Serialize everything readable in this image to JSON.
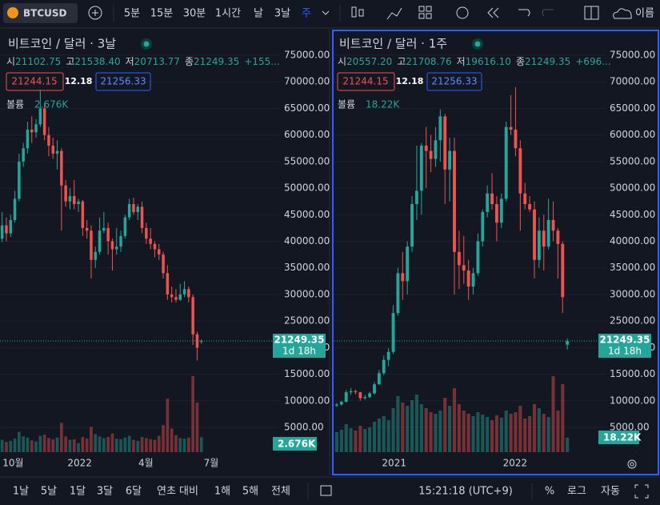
{
  "toolbar": {
    "symbol": "BTCUSD",
    "intervals": [
      "5분",
      "15분",
      "30분",
      "1시간",
      "날",
      "3날",
      "주"
    ],
    "layout_name": "이름"
  },
  "chart_data": [
    {
      "type": "candlestick",
      "title": "비트코인 / 달러 · 3날",
      "ohlc_header": [
        {
          "label": "시",
          "value": "21102.75"
        },
        {
          "label": "고",
          "value": "21538.40"
        },
        {
          "label": "저",
          "value": "20713.77"
        },
        {
          "label": "종",
          "value": "21249.35"
        }
      ],
      "change": "+155...",
      "bid": "21244.15",
      "spread": "12.18",
      "ask": "21256.33",
      "volume_title": "볼륨",
      "volume_label": "2.676K",
      "countdown": "1d 18h",
      "up_color": "#26a69a",
      "down_color": "#ef5350",
      "grid": true,
      "ohlc": [
        [
          40500,
          45500,
          39800,
          43000
        ],
        [
          43000,
          44500,
          40000,
          41500
        ],
        [
          41500,
          45000,
          40800,
          44000
        ],
        [
          44000,
          49500,
          43500,
          48000
        ],
        [
          48000,
          56500,
          47500,
          55000
        ],
        [
          55000,
          58500,
          54000,
          57500
        ],
        [
          57500,
          62500,
          56500,
          61000
        ],
        [
          61000,
          63500,
          58500,
          60500
        ],
        [
          60500,
          63000,
          59500,
          62000
        ],
        [
          62000,
          68500,
          61500,
          65000
        ],
        [
          65000,
          66000,
          59000,
          60000
        ],
        [
          60000,
          61500,
          56000,
          58000
        ],
        [
          58000,
          59500,
          55500,
          56500
        ],
        [
          56500,
          59000,
          53500,
          57000
        ],
        [
          57000,
          57500,
          42000,
          50500
        ],
        [
          50500,
          51500,
          46500,
          47500
        ],
        [
          47500,
          50000,
          46000,
          48500
        ],
        [
          48500,
          51500,
          46000,
          47000
        ],
        [
          47000,
          48000,
          45500,
          47500
        ],
        [
          47500,
          47800,
          41000,
          42500
        ],
        [
          42500,
          44000,
          40500,
          42000
        ],
        [
          42000,
          43000,
          33000,
          36500
        ],
        [
          36500,
          39000,
          35000,
          38000
        ],
        [
          38000,
          44500,
          37500,
          42000
        ],
        [
          42000,
          45500,
          41500,
          42500
        ],
        [
          42500,
          43500,
          37500,
          40000
        ],
        [
          40000,
          40500,
          34500,
          38500
        ],
        [
          38500,
          42500,
          37500,
          39000
        ],
        [
          39000,
          42000,
          38000,
          41000
        ],
        [
          41000,
          45000,
          40500,
          44500
        ],
        [
          44500,
          48000,
          44000,
          47000
        ],
        [
          47000,
          48200,
          45000,
          45500
        ],
        [
          45500,
          47000,
          44000,
          46500
        ],
        [
          46500,
          47500,
          41500,
          42500
        ],
        [
          42500,
          43500,
          39500,
          40500
        ],
        [
          40500,
          42500,
          38500,
          39500
        ],
        [
          39500,
          40000,
          37000,
          38500
        ],
        [
          38500,
          39500,
          36500,
          37500
        ],
        [
          37500,
          38000,
          33000,
          34000
        ],
        [
          34000,
          35500,
          29000,
          30000
        ],
        [
          30000,
          31500,
          28500,
          29500
        ],
        [
          29500,
          31000,
          28500,
          29000
        ],
        [
          29000,
          32000,
          28800,
          30000
        ],
        [
          30000,
          32500,
          29500,
          31000
        ],
        [
          31000,
          31500,
          28500,
          29500
        ],
        [
          29500,
          30000,
          20500,
          22500
        ],
        [
          22500,
          23000,
          17600,
          20000
        ],
        [
          21102.75,
          21538.4,
          20713.77,
          21249.35
        ]
      ],
      "volume": [
        2200,
        1800,
        2000,
        2400,
        3600,
        2800,
        2600,
        2100,
        1900,
        2900,
        3100,
        2500,
        2300,
        2600,
        5200,
        2800,
        2200,
        2300,
        1600,
        2700,
        2400,
        4500,
        3200,
        2800,
        2500,
        2700,
        3300,
        2400,
        2300,
        2600,
        2900,
        2200,
        2000,
        2700,
        2500,
        2300,
        2200,
        2900,
        4800,
        9500,
        4200,
        3000,
        2500,
        2400,
        2600,
        13500,
        8800,
        2676
      ],
      "xlim": [
        -0.5,
        49.5
      ],
      "xticks": [
        {
          "value": 2.6,
          "label": "10월"
        },
        {
          "value": 18.3,
          "label": "2022"
        },
        {
          "value": 33.9,
          "label": "4월"
        },
        {
          "value": 49.3,
          "label": "7월"
        }
      ],
      "ylim": [
        5000,
        75000
      ],
      "yticks": [
        {
          "value": 5000,
          "label": "5000.00"
        },
        {
          "value": 10000,
          "label": "10000.00"
        },
        {
          "value": 15000,
          "label": "15000.00"
        },
        {
          "value": 20000,
          "label": "20000.00"
        },
        {
          "value": 25000,
          "label": "25000.00"
        },
        {
          "value": 30000,
          "label": "30000.00"
        },
        {
          "value": 35000,
          "label": "35000.00"
        },
        {
          "value": 40000,
          "label": "40000.00"
        },
        {
          "value": 45000,
          "label": "45000.00"
        },
        {
          "value": 50000,
          "label": "50000.00"
        },
        {
          "value": 55000,
          "label": "55000.00"
        },
        {
          "value": 60000,
          "label": "60000.00"
        },
        {
          "value": 65000,
          "label": "65000.00"
        },
        {
          "value": 70000,
          "label": "70000.00"
        },
        {
          "value": 75000,
          "label": "75000.00"
        }
      ]
    },
    {
      "type": "candlestick",
      "title": "비트코인 / 달러 · 1주",
      "ohlc_header": [
        {
          "label": "시",
          "value": "20557.20"
        },
        {
          "label": "고",
          "value": "21708.76"
        },
        {
          "label": "저",
          "value": "19616.10"
        },
        {
          "label": "종",
          "value": "21249.35"
        }
      ],
      "change": "+696...",
      "bid": "21244.15",
      "spread": "12.18",
      "ask": "21256.33",
      "volume_title": "볼륨",
      "volume_label": "18.22K",
      "countdown": "1d 18h",
      "up_color": "#26a69a",
      "down_color": "#ef5350",
      "grid": true,
      "ohlc": [
        [
          9100,
          9600,
          8900,
          9300
        ],
        [
          9300,
          10000,
          9100,
          9800
        ],
        [
          9800,
          12000,
          9700,
          11600
        ],
        [
          11600,
          12400,
          11100,
          11800
        ],
        [
          11800,
          12100,
          11200,
          11600
        ],
        [
          11600,
          11700,
          10000,
          10500
        ],
        [
          10500,
          11100,
          10200,
          10700
        ],
        [
          10700,
          11700,
          10500,
          11400
        ],
        [
          11400,
          13500,
          11200,
          13100
        ],
        [
          13100,
          15800,
          13000,
          15200
        ],
        [
          15200,
          18500,
          14800,
          17700
        ],
        [
          17700,
          19900,
          16500,
          19200
        ],
        [
          19200,
          28000,
          18800,
          26500
        ],
        [
          26500,
          35000,
          26000,
          34000
        ],
        [
          34000,
          38000,
          29000,
          32500
        ],
        [
          32500,
          40000,
          30000,
          39000
        ],
        [
          39000,
          48500,
          38000,
          47000
        ],
        [
          47000,
          58000,
          44000,
          49500
        ],
        [
          49500,
          58500,
          45000,
          58000
        ],
        [
          58000,
          61500,
          50000,
          57000
        ],
        [
          57000,
          60000,
          53000,
          55500
        ],
        [
          55500,
          61500,
          54000,
          59000
        ],
        [
          59000,
          64800,
          55000,
          63500
        ],
        [
          63500,
          64000,
          47000,
          53500
        ],
        [
          53500,
          59500,
          47500,
          57000
        ],
        [
          57000,
          59500,
          30000,
          38000
        ],
        [
          38000,
          42000,
          31000,
          35500
        ],
        [
          35500,
          41000,
          32000,
          34500
        ],
        [
          34500,
          36500,
          29000,
          31500
        ],
        [
          31500,
          35000,
          30000,
          34000
        ],
        [
          34000,
          41500,
          33500,
          40000
        ],
        [
          40000,
          46000,
          39000,
          45500
        ],
        [
          45500,
          50500,
          44500,
          49000
        ],
        [
          49000,
          52800,
          46000,
          47000
        ],
        [
          47000,
          48500,
          40000,
          43500
        ],
        [
          43500,
          49000,
          42500,
          48000
        ],
        [
          48000,
          62500,
          47500,
          61500
        ],
        [
          61500,
          67500,
          60000,
          61000
        ],
        [
          61000,
          69000,
          56000,
          57500
        ],
        [
          57500,
          59000,
          42000,
          49000
        ],
        [
          49000,
          51000,
          46000,
          47000
        ],
        [
          47000,
          48500,
          45500,
          46000
        ],
        [
          46000,
          47500,
          33000,
          36500
        ],
        [
          36500,
          44500,
          35000,
          42000
        ],
        [
          42000,
          45000,
          34500,
          39000
        ],
        [
          39000,
          48000,
          38500,
          44000
        ],
        [
          44000,
          47500,
          40000,
          42000
        ],
        [
          42000,
          42500,
          33000,
          39500
        ],
        [
          39500,
          40000,
          26500,
          29500
        ],
        [
          20557.2,
          21708.76,
          19616.1,
          21249.35
        ]
      ],
      "volume": [
        25000,
        28000,
        35000,
        30000,
        27000,
        33000,
        29000,
        31000,
        38000,
        42000,
        45000,
        40000,
        55000,
        70000,
        62000,
        58000,
        65000,
        72000,
        60000,
        55000,
        50000,
        48000,
        52000,
        68000,
        58000,
        80000,
        60000,
        52000,
        48000,
        45000,
        50000,
        47000,
        44000,
        40000,
        46000,
        43000,
        52000,
        48000,
        50000,
        58000,
        42000,
        45000,
        60000,
        55000,
        48000,
        44000,
        95000,
        52000,
        85000,
        18220
      ],
      "xlim": [
        -0.5,
        50.5
      ],
      "xticks": [
        {
          "value": 12.2,
          "label": "2021"
        },
        {
          "value": 37.9,
          "label": "2022"
        }
      ],
      "ylim": [
        5000,
        75000
      ],
      "yticks": [
        {
          "value": 5000,
          "label": "5000.00"
        },
        {
          "value": 10000,
          "label": "10000.00"
        },
        {
          "value": 15000,
          "label": "15000.00"
        },
        {
          "value": 20000,
          "label": "20000.00"
        },
        {
          "value": 25000,
          "label": "25000.00"
        },
        {
          "value": 30000,
          "label": "30000.00"
        },
        {
          "value": 35000,
          "label": "35000.00"
        },
        {
          "value": 40000,
          "label": "40000.00"
        },
        {
          "value": 45000,
          "label": "45000.00"
        },
        {
          "value": 50000,
          "label": "50000.00"
        },
        {
          "value": 55000,
          "label": "55000.00"
        },
        {
          "value": 60000,
          "label": "60000.00"
        },
        {
          "value": 65000,
          "label": "65000.00"
        },
        {
          "value": 70000,
          "label": "70000.00"
        },
        {
          "value": 75000,
          "label": "75000.00"
        }
      ]
    }
  ],
  "bottom_bar": {
    "ranges": [
      "1날",
      "5날",
      "1달",
      "3달",
      "6달",
      "연초 대비",
      "1해",
      "5해",
      "전체"
    ],
    "clock": "15:21:18 (UTC+9)",
    "percent": "%",
    "log": "로그",
    "auto": "자동"
  }
}
